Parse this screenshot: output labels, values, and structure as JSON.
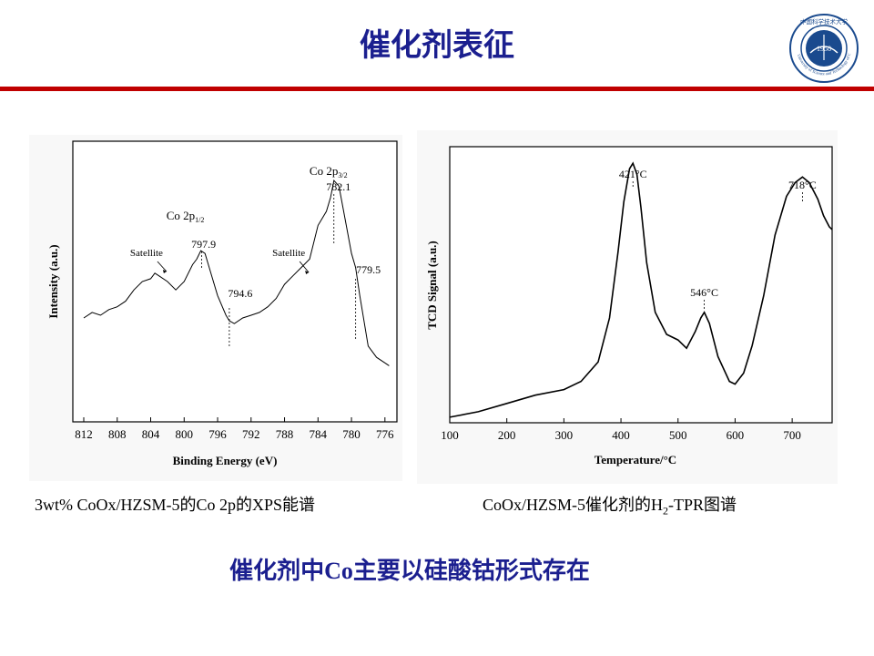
{
  "slide": {
    "title": "催化剂表征",
    "logo": {
      "year": "1958",
      "arc_text": "University of Science and Technology of China",
      "top_text": "中国科学技术大学"
    },
    "captions": {
      "left": "3wt% CoOx/HZSM-5的Co  2p的XPS能谱",
      "right_prefix": "CoOx/HZSM-5催化剂的H",
      "right_sub": "2",
      "right_suffix": "-TPR图谱"
    },
    "conclusion": {
      "prefix": "催化剂中",
      "element": "Co",
      "suffix": "主要以硅酸钴形式存在"
    }
  },
  "chart_data": [
    {
      "type": "line",
      "xlabel": "Binding Energy (eV)",
      "ylabel": "Intensity (a.u.)",
      "xlim": [
        812,
        775
      ],
      "x_ticks": [
        812,
        808,
        804,
        800,
        796,
        792,
        788,
        784,
        780,
        776
      ],
      "series": [
        {
          "x": [
            812,
            811,
            810,
            809,
            808,
            807,
            806,
            805,
            804,
            803.5,
            803,
            802,
            801,
            800,
            799,
            798.5,
            798,
            797.5,
            797,
            796,
            795,
            794.6,
            794,
            793,
            792,
            791,
            790,
            789,
            788,
            787,
            786,
            785,
            784,
            783,
            782.5,
            782.1,
            781.5,
            781,
            780,
            779.5,
            779,
            778,
            777,
            776,
            775.5
          ],
          "y": [
            0.37,
            0.39,
            0.38,
            0.4,
            0.41,
            0.43,
            0.47,
            0.5,
            0.51,
            0.53,
            0.52,
            0.5,
            0.47,
            0.5,
            0.56,
            0.58,
            0.61,
            0.6,
            0.55,
            0.45,
            0.38,
            0.36,
            0.35,
            0.37,
            0.38,
            0.39,
            0.41,
            0.44,
            0.49,
            0.52,
            0.55,
            0.58,
            0.7,
            0.75,
            0.8,
            0.86,
            0.84,
            0.76,
            0.6,
            0.55,
            0.45,
            0.27,
            0.23,
            0.21,
            0.2
          ]
        }
      ],
      "annotations": [
        {
          "text": "Co 2p",
          "sub": "3/2",
          "x": 782.1
        },
        {
          "text": "782.1",
          "x": 782.1
        },
        {
          "text": "Co 2p",
          "sub": "1/2",
          "x": 797.9
        },
        {
          "text": "797.9",
          "x": 797.9
        },
        {
          "text": "794.6",
          "x": 794.6
        },
        {
          "text": "779.5",
          "x": 779.5
        },
        {
          "text": "Satellite",
          "x": 804.5
        },
        {
          "text": "Satellite",
          "x": 787.5
        }
      ]
    },
    {
      "type": "line",
      "xlabel": "Temperature/°C",
      "ylabel": "TCD Signal (a.u.)",
      "xlim": [
        100,
        770
      ],
      "x_ticks": [
        100,
        200,
        300,
        400,
        500,
        600,
        700
      ],
      "series": [
        {
          "x": [
            100,
            150,
            200,
            250,
            300,
            330,
            360,
            380,
            395,
            405,
            415,
            421,
            428,
            435,
            445,
            460,
            480,
            500,
            515,
            530,
            540,
            546,
            555,
            570,
            590,
            600,
            615,
            630,
            650,
            670,
            690,
            705,
            718,
            730,
            745,
            755,
            765,
            770
          ],
          "y": [
            0.02,
            0.04,
            0.07,
            0.1,
            0.12,
            0.15,
            0.22,
            0.38,
            0.62,
            0.8,
            0.92,
            0.94,
            0.9,
            0.78,
            0.58,
            0.4,
            0.32,
            0.3,
            0.27,
            0.33,
            0.38,
            0.4,
            0.36,
            0.24,
            0.15,
            0.14,
            0.18,
            0.28,
            0.46,
            0.68,
            0.82,
            0.87,
            0.89,
            0.87,
            0.81,
            0.75,
            0.71,
            0.7
          ]
        }
      ],
      "annotations": [
        {
          "text": "421°C",
          "x": 421
        },
        {
          "text": "546°C",
          "x": 546
        },
        {
          "text": "718°C",
          "x": 718
        }
      ]
    }
  ],
  "colors": {
    "title": "#1b1f8f",
    "rule": "#c00000",
    "logo": "#1a4a8e"
  }
}
